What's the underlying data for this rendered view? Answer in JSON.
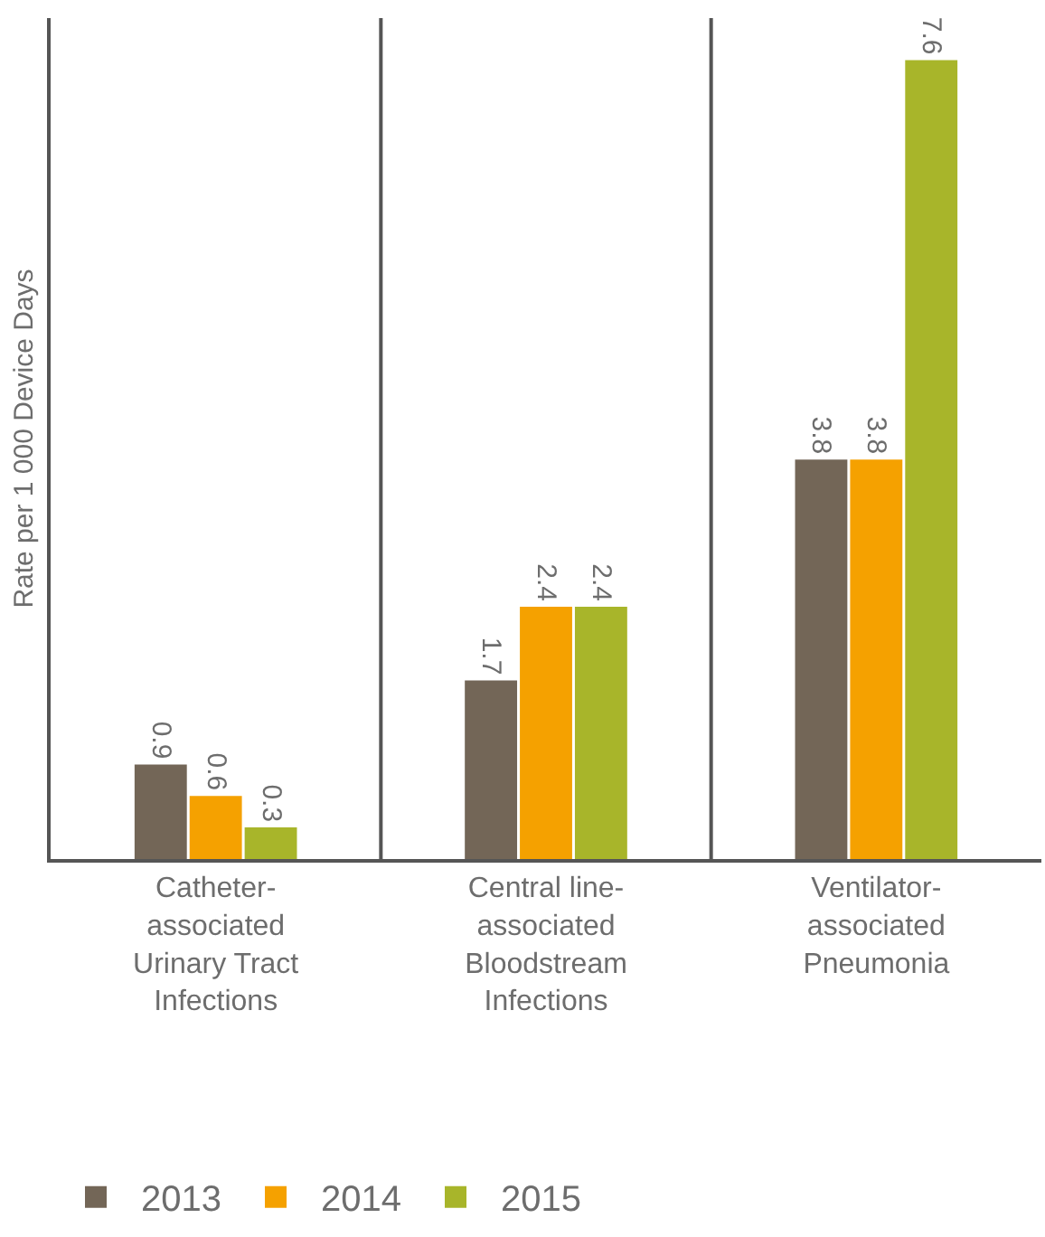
{
  "chart_data": {
    "type": "bar",
    "ylabel": "Rate per 1 000 Device Days",
    "categories": [
      "Catheter-associated Urinary Tract Infections",
      "Central line-associated Bloodstream Infections",
      "Ventilator-associated Pneumonia"
    ],
    "series": [
      {
        "name": "2013",
        "color": "#736657",
        "values": [
          0.9,
          1.7,
          3.8
        ]
      },
      {
        "name": "2014",
        "color": "#f5a100",
        "values": [
          0.6,
          2.4,
          3.8
        ]
      },
      {
        "name": "2015",
        "color": "#a8b52a",
        "values": [
          0.3,
          2.4,
          7.6
        ]
      }
    ],
    "data_labels": true,
    "grid": "x",
    "legend": "bottom",
    "tick_labels": "x"
  }
}
